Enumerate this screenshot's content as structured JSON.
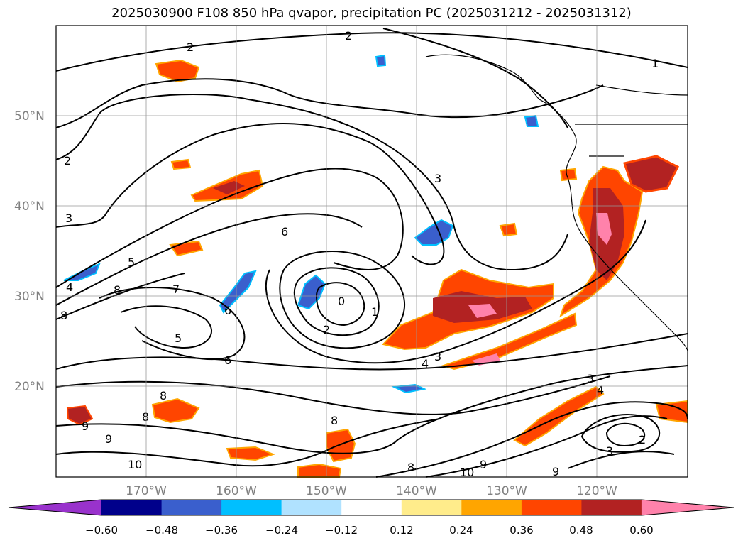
{
  "title": "2025030900 F108 850 hPa qvapor, precipitation PC (2025031212 - 2025031312)",
  "map": {
    "lat_labels": [
      "50°N",
      "40°N",
      "30°N",
      "20°N"
    ],
    "lon_labels": [
      "170°W",
      "160°W",
      "150°W",
      "140°W",
      "130°W",
      "120°W"
    ],
    "contour_labels": [
      "2",
      "2",
      "1",
      "2",
      "3",
      "3",
      "6",
      "5",
      "4",
      "8",
      "7",
      "6",
      "8",
      "5",
      "0",
      "1",
      "2",
      "3",
      "4",
      "6",
      "8",
      "8",
      "9",
      "8",
      "10",
      "9",
      "8",
      "10",
      "9",
      "3",
      "4",
      "9",
      "3",
      "2"
    ]
  },
  "colorbar": {
    "tick_labels": [
      "−0.60",
      "−0.48",
      "−0.36",
      "−0.24",
      "−0.12",
      "0.12",
      "0.24",
      "0.36",
      "0.48",
      "0.60"
    ],
    "colors": [
      "#9932cc",
      "#00008b",
      "#3a5fcd",
      "#00bfff",
      "#b0e2ff",
      "#ffffff",
      "#ffec8b",
      "#ffa500",
      "#ff4500",
      "#b22222",
      "#ff82ab"
    ]
  }
}
